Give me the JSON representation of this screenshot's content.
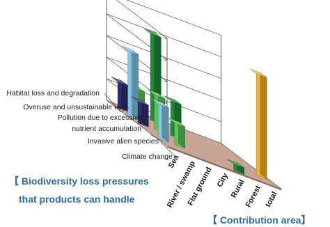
{
  "chart_data": {
    "type": "bar3d",
    "title": "",
    "pressures_label": "【 Biodiversity loss pressures that products can handle",
    "pressures_label_lines": [
      "【 Biodiversity loss pressures",
      "that products can handle"
    ],
    "areas_label": "【 Contribution area】",
    "pressures": [
      "Habitat loss and degradation",
      "Overuse and unsustainable use",
      "Pollution due to excessive",
      "nutrient accumulation",
      "Invasive alien species",
      "Climate change"
    ],
    "areas": [
      "Sea",
      "River / swamp",
      "Flat ground",
      "City",
      "Rural",
      "Forest",
      "total"
    ],
    "zlim": [
      0,
      5
    ],
    "grid": true,
    "bars": [
      {
        "area": "Sea",
        "pressure": "Habitat loss and degradation",
        "value": 1.2,
        "color": "#2b2e6e"
      },
      {
        "area": "Sea",
        "pressure": "Overuse and unsustainable use",
        "value": 3.0,
        "color": "#7fc6e0"
      },
      {
        "area": "Sea",
        "pressure": "Pollution due to excessive",
        "value": 1.0,
        "color": "#2b2e6e"
      },
      {
        "area": "Sea",
        "pressure": "Invasive alien species",
        "value": 1.6,
        "color": "#7fc6e0"
      },
      {
        "area": "River / swamp",
        "pressure": "Habitat loss and degradation",
        "value": 1.2,
        "color": "#5fc356"
      },
      {
        "area": "River / swamp",
        "pressure": "Pollution due to excessive",
        "value": 1.6,
        "color": "#5fc356"
      },
      {
        "area": "River / swamp",
        "pressure": "Invasive alien species",
        "value": 1.0,
        "color": "#5fc356"
      },
      {
        "area": "Flat ground",
        "pressure": "Habitat loss and degradation",
        "value": 4.0,
        "color": "#1f8a3a"
      },
      {
        "area": "Flat ground",
        "pressure": "Pollution due to excessive",
        "value": 1.6,
        "color": "#1f8a3a"
      },
      {
        "area": "Rural",
        "pressure": "Climate change",
        "value": 0.3,
        "color": "#1f8a3a"
      },
      {
        "area": "total",
        "pressure": "Invasive alien species",
        "value": 4.7,
        "color": "#f3b22a"
      }
    ],
    "colors": {
      "floor": "#c9a596",
      "frame": "#222222",
      "caption": "#2f6aa3"
    }
  }
}
